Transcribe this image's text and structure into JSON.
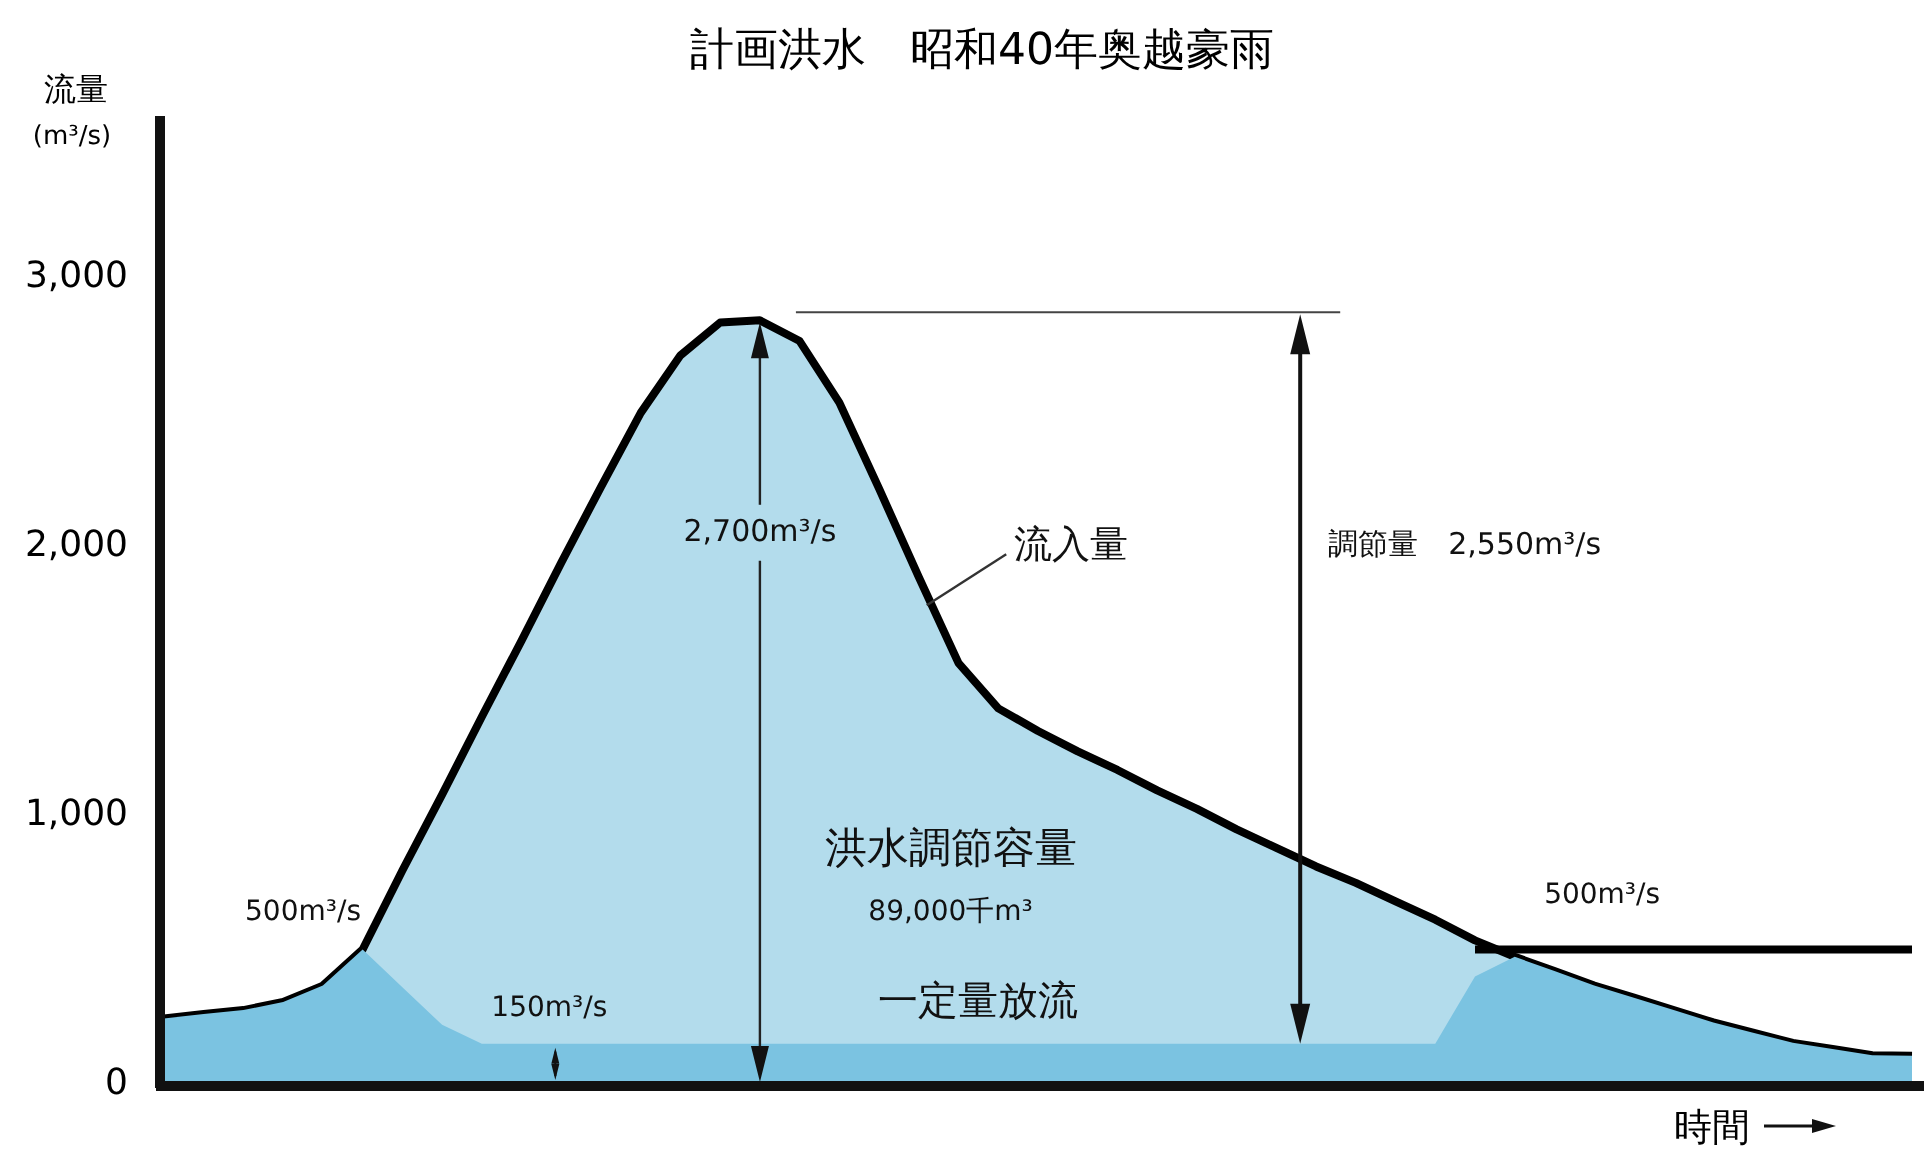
{
  "chart_data": {
    "type": "area",
    "title": "計画洪水　昭和40年奥越豪雨",
    "ylabel": "流量",
    "y2label": "(m³/s)",
    "xlabel": "時間",
    "categories": [
      null,
      null,
      null,
      null,
      null,
      null,
      null,
      null,
      null,
      null,
      null,
      null,
      null,
      null,
      null,
      null,
      null,
      null,
      null,
      null,
      null,
      null,
      null,
      null,
      null,
      null,
      null,
      null,
      null,
      null,
      null,
      null,
      null,
      null,
      null,
      null,
      null,
      null,
      null,
      null,
      null,
      null,
      null,
      null,
      null
    ],
    "series": [
      {
        "color": "#b3dcec",
        "values": [
          244,
          260,
          275,
          305,
          366,
          500,
          794,
          1076,
          1366,
          1649,
          1939,
          2221,
          2496,
          2710,
          2832,
          2840,
          2763,
          2534,
          2214,
          1885,
          1565,
          1397,
          1313,
          1237,
          1168,
          1092,
          1023,
          947,
          878,
          809,
          748,
          679,
          611,
          534,
          473,
          420,
          366,
          321,
          275,
          229,
          191,
          153,
          130,
          107,
          105
        ]
      },
      {
        "color": "#7bc3e1",
        "values": [
          244,
          260,
          275,
          305,
          366,
          500,
          360,
          220,
          150,
          150,
          150,
          150,
          150,
          150,
          150,
          150,
          150,
          150,
          150,
          150,
          150,
          150,
          150,
          150,
          150,
          150,
          150,
          150,
          150,
          150,
          150,
          150,
          150,
          400,
          473,
          420,
          366,
          321,
          275,
          229,
          191,
          153,
          130,
          107,
          105
        ]
      },
      {
        "type": "line",
        "color": "#000000",
        "values": [
          null,
          null,
          null,
          null,
          null,
          null,
          null,
          null,
          null,
          null,
          null,
          null,
          null,
          null,
          null,
          null,
          null,
          null,
          null,
          null,
          null,
          null,
          null,
          null,
          null,
          null,
          null,
          null,
          null,
          null,
          null,
          null,
          null,
          500,
          500,
          500,
          500,
          500,
          500,
          500,
          500,
          500,
          500,
          500,
          500
        ]
      }
    ],
    "ylim": [
      0,
      3600
    ],
    "yticks": [
      {
        "value": 0,
        "label": "0"
      },
      {
        "value": 1000,
        "label": "1,000"
      },
      {
        "value": 2000,
        "label": "2,000"
      },
      {
        "value": 3000,
        "label": "3,000"
      }
    ],
    "tick_labels": "y",
    "annotations": [
      "流入量",
      "調節量　2,550m³/s",
      "2,700m³/s",
      "洪水調節容量",
      "89,000千m³",
      "一定量放流",
      "500m³/s",
      "150m³/s",
      "500m³/s"
    ]
  }
}
